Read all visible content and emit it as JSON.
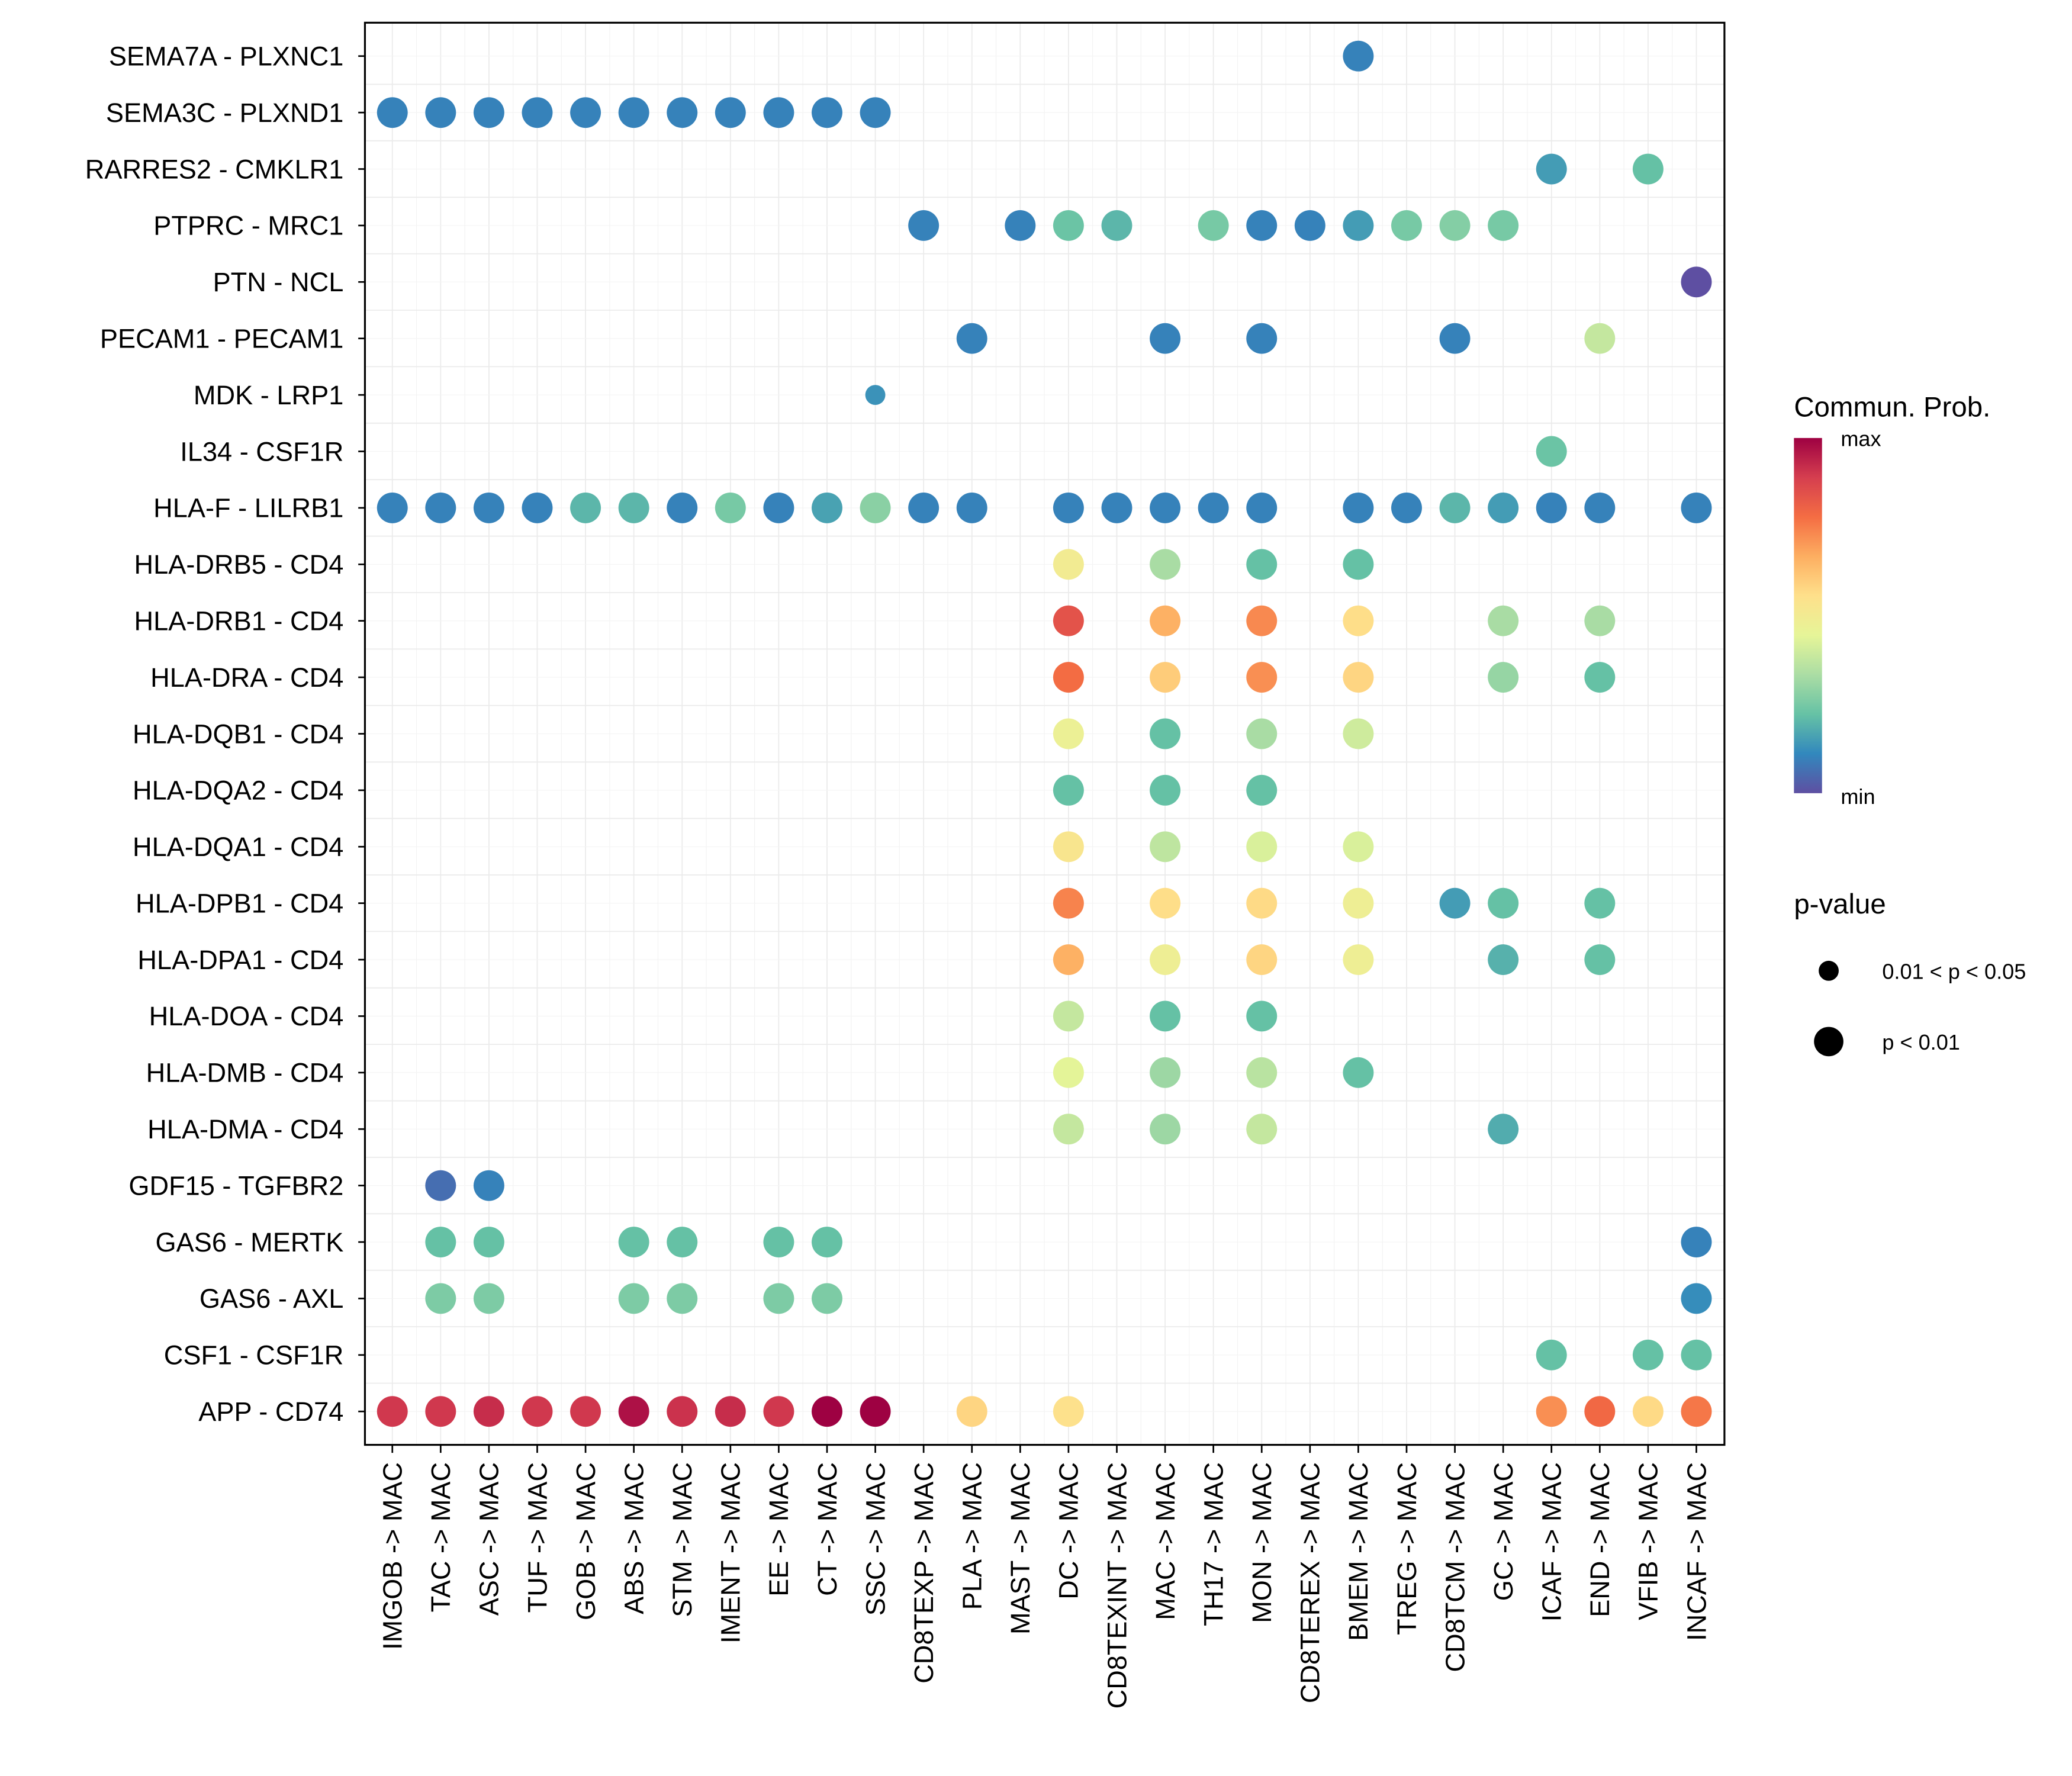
{
  "chart_data": {
    "type": "scatter",
    "subtype": "dot-plot",
    "title": "",
    "xlabel": "",
    "ylabel": "",
    "grid": true,
    "legend_position": "right",
    "x_categories": [
      "IMGOB -> MAC",
      "TAC -> MAC",
      "ASC -> MAC",
      "TUF -> MAC",
      "GOB -> MAC",
      "ABS -> MAC",
      "STM -> MAC",
      "IMENT -> MAC",
      "EE -> MAC",
      "CT -> MAC",
      "SSC -> MAC",
      "CD8TEXP -> MAC",
      "PLA -> MAC",
      "MAST -> MAC",
      "DC -> MAC",
      "CD8TEXINT -> MAC",
      "MAC -> MAC",
      "TH17 -> MAC",
      "MON -> MAC",
      "CD8TEREX -> MAC",
      "BMEM -> MAC",
      "TREG -> MAC",
      "CD8TCM -> MAC",
      "GC -> MAC",
      "ICAF -> MAC",
      "END -> MAC",
      "VFIB -> MAC",
      "INCAF -> MAC"
    ],
    "y_categories": [
      "SEMA7A - PLXNC1",
      "SEMA3C - PLXND1",
      "RARRES2 - CMKLR1",
      "PTPRC - MRC1",
      "PTN - NCL",
      "PECAM1 - PECAM1",
      "MDK - LRP1",
      "IL34 - CSF1R",
      "HLA-F - LILRB1",
      "HLA-DRB5 - CD4",
      "HLA-DRB1 - CD4",
      "HLA-DRA - CD4",
      "HLA-DQB1 - CD4",
      "HLA-DQA2 - CD4",
      "HLA-DQA1 - CD4",
      "HLA-DPB1 - CD4",
      "HLA-DPA1 - CD4",
      "HLA-DOA - CD4",
      "HLA-DMB - CD4",
      "HLA-DMA - CD4",
      "GDF15 - TGFBR2",
      "GAS6 - MERTK",
      "GAS6 - AXL",
      "CSF1 - CSF1R",
      "APP - CD74"
    ],
    "value_scale": "relative communication probability (0 = min, 1 = max)",
    "points": [
      {
        "y": "SEMA7A - PLXNC1",
        "x": "BMEM -> MAC",
        "prob": 0.1,
        "p": "p < 0.01"
      },
      {
        "y": "SEMA3C - PLXND1",
        "x": "IMGOB -> MAC",
        "prob": 0.1,
        "p": "p < 0.01"
      },
      {
        "y": "SEMA3C - PLXND1",
        "x": "TAC -> MAC",
        "prob": 0.1,
        "p": "p < 0.01"
      },
      {
        "y": "SEMA3C - PLXND1",
        "x": "ASC -> MAC",
        "prob": 0.1,
        "p": "p < 0.01"
      },
      {
        "y": "SEMA3C - PLXND1",
        "x": "TUF -> MAC",
        "prob": 0.1,
        "p": "p < 0.01"
      },
      {
        "y": "SEMA3C - PLXND1",
        "x": "GOB -> MAC",
        "prob": 0.1,
        "p": "p < 0.01"
      },
      {
        "y": "SEMA3C - PLXND1",
        "x": "ABS -> MAC",
        "prob": 0.1,
        "p": "p < 0.01"
      },
      {
        "y": "SEMA3C - PLXND1",
        "x": "STM -> MAC",
        "prob": 0.1,
        "p": "p < 0.01"
      },
      {
        "y": "SEMA3C - PLXND1",
        "x": "IMENT -> MAC",
        "prob": 0.1,
        "p": "p < 0.01"
      },
      {
        "y": "SEMA3C - PLXND1",
        "x": "EE -> MAC",
        "prob": 0.1,
        "p": "p < 0.01"
      },
      {
        "y": "SEMA3C - PLXND1",
        "x": "CT -> MAC",
        "prob": 0.1,
        "p": "p < 0.01"
      },
      {
        "y": "SEMA3C - PLXND1",
        "x": "SSC -> MAC",
        "prob": 0.1,
        "p": "p < 0.01"
      },
      {
        "y": "RARRES2 - CMKLR1",
        "x": "ICAF -> MAC",
        "prob": 0.15,
        "p": "p < 0.01"
      },
      {
        "y": "RARRES2 - CMKLR1",
        "x": "VFIB -> MAC",
        "prob": 0.22,
        "p": "p < 0.01"
      },
      {
        "y": "PTPRC - MRC1",
        "x": "CD8TEXP -> MAC",
        "prob": 0.1,
        "p": "p < 0.01"
      },
      {
        "y": "PTPRC - MRC1",
        "x": "MAST -> MAC",
        "prob": 0.1,
        "p": "p < 0.01"
      },
      {
        "y": "PTPRC - MRC1",
        "x": "DC -> MAC",
        "prob": 0.23,
        "p": "p < 0.01"
      },
      {
        "y": "PTPRC - MRC1",
        "x": "CD8TEXINT -> MAC",
        "prob": 0.2,
        "p": "p < 0.01"
      },
      {
        "y": "PTPRC - MRC1",
        "x": "TH17 -> MAC",
        "prob": 0.25,
        "p": "p < 0.01"
      },
      {
        "y": "PTPRC - MRC1",
        "x": "MON -> MAC",
        "prob": 0.1,
        "p": "p < 0.01"
      },
      {
        "y": "PTPRC - MRC1",
        "x": "CD8TEREX -> MAC",
        "prob": 0.1,
        "p": "p < 0.01"
      },
      {
        "y": "PTPRC - MRC1",
        "x": "BMEM -> MAC",
        "prob": 0.15,
        "p": "p < 0.01"
      },
      {
        "y": "PTPRC - MRC1",
        "x": "TREG -> MAC",
        "prob": 0.25,
        "p": "p < 0.01"
      },
      {
        "y": "PTPRC - MRC1",
        "x": "CD8TCM -> MAC",
        "prob": 0.27,
        "p": "p < 0.01"
      },
      {
        "y": "PTPRC - MRC1",
        "x": "GC -> MAC",
        "prob": 0.25,
        "p": "p < 0.01"
      },
      {
        "y": "PTN - NCL",
        "x": "INCAF -> MAC",
        "prob": 0.0,
        "p": "p < 0.01"
      },
      {
        "y": "PECAM1 - PECAM1",
        "x": "PLA -> MAC",
        "prob": 0.1,
        "p": "p < 0.01"
      },
      {
        "y": "PECAM1 - PECAM1",
        "x": "MAC -> MAC",
        "prob": 0.1,
        "p": "p < 0.01"
      },
      {
        "y": "PECAM1 - PECAM1",
        "x": "MON -> MAC",
        "prob": 0.1,
        "p": "p < 0.01"
      },
      {
        "y": "PECAM1 - PECAM1",
        "x": "CD8TCM -> MAC",
        "prob": 0.1,
        "p": "p < 0.01"
      },
      {
        "y": "PECAM1 - PECAM1",
        "x": "END -> MAC",
        "prob": 0.38,
        "p": "p < 0.01"
      },
      {
        "y": "MDK - LRP1",
        "x": "SSC -> MAC",
        "prob": 0.13,
        "p": "0.01 < p < 0.05"
      },
      {
        "y": "IL34 - CSF1R",
        "x": "ICAF -> MAC",
        "prob": 0.23,
        "p": "p < 0.01"
      },
      {
        "y": "HLA-F - LILRB1",
        "x": "IMGOB -> MAC",
        "prob": 0.1,
        "p": "p < 0.01"
      },
      {
        "y": "HLA-F - LILRB1",
        "x": "TAC -> MAC",
        "prob": 0.1,
        "p": "p < 0.01"
      },
      {
        "y": "HLA-F - LILRB1",
        "x": "ASC -> MAC",
        "prob": 0.1,
        "p": "p < 0.01"
      },
      {
        "y": "HLA-F - LILRB1",
        "x": "TUF -> MAC",
        "prob": 0.1,
        "p": "p < 0.01"
      },
      {
        "y": "HLA-F - LILRB1",
        "x": "GOB -> MAC",
        "prob": 0.2,
        "p": "p < 0.01"
      },
      {
        "y": "HLA-F - LILRB1",
        "x": "ABS -> MAC",
        "prob": 0.2,
        "p": "p < 0.01"
      },
      {
        "y": "HLA-F - LILRB1",
        "x": "STM -> MAC",
        "prob": 0.1,
        "p": "p < 0.01"
      },
      {
        "y": "HLA-F - LILRB1",
        "x": "IMENT -> MAC",
        "prob": 0.25,
        "p": "p < 0.01"
      },
      {
        "y": "HLA-F - LILRB1",
        "x": "EE -> MAC",
        "prob": 0.1,
        "p": "p < 0.01"
      },
      {
        "y": "HLA-F - LILRB1",
        "x": "CT -> MAC",
        "prob": 0.16,
        "p": "p < 0.01"
      },
      {
        "y": "HLA-F - LILRB1",
        "x": "SSC -> MAC",
        "prob": 0.28,
        "p": "p < 0.01"
      },
      {
        "y": "HLA-F - LILRB1",
        "x": "CD8TEXP -> MAC",
        "prob": 0.1,
        "p": "p < 0.01"
      },
      {
        "y": "HLA-F - LILRB1",
        "x": "PLA -> MAC",
        "prob": 0.1,
        "p": "p < 0.01"
      },
      {
        "y": "HLA-F - LILRB1",
        "x": "DC -> MAC",
        "prob": 0.1,
        "p": "p < 0.01"
      },
      {
        "y": "HLA-F - LILRB1",
        "x": "CD8TEXINT -> MAC",
        "prob": 0.1,
        "p": "p < 0.01"
      },
      {
        "y": "HLA-F - LILRB1",
        "x": "MAC -> MAC",
        "prob": 0.1,
        "p": "p < 0.01"
      },
      {
        "y": "HLA-F - LILRB1",
        "x": "TH17 -> MAC",
        "prob": 0.1,
        "p": "p < 0.01"
      },
      {
        "y": "HLA-F - LILRB1",
        "x": "MON -> MAC",
        "prob": 0.1,
        "p": "p < 0.01"
      },
      {
        "y": "HLA-F - LILRB1",
        "x": "BMEM -> MAC",
        "prob": 0.1,
        "p": "p < 0.01"
      },
      {
        "y": "HLA-F - LILRB1",
        "x": "TREG -> MAC",
        "prob": 0.1,
        "p": "p < 0.01"
      },
      {
        "y": "HLA-F - LILRB1",
        "x": "CD8TCM -> MAC",
        "prob": 0.2,
        "p": "p < 0.01"
      },
      {
        "y": "HLA-F - LILRB1",
        "x": "GC -> MAC",
        "prob": 0.15,
        "p": "p < 0.01"
      },
      {
        "y": "HLA-F - LILRB1",
        "x": "ICAF -> MAC",
        "prob": 0.1,
        "p": "p < 0.01"
      },
      {
        "y": "HLA-F - LILRB1",
        "x": "END -> MAC",
        "prob": 0.1,
        "p": "p < 0.01"
      },
      {
        "y": "HLA-F - LILRB1",
        "x": "INCAF -> MAC",
        "prob": 0.1,
        "p": "p < 0.01"
      },
      {
        "y": "HLA-DRB5 - CD4",
        "x": "DC -> MAC",
        "prob": 0.5,
        "p": "p < 0.01"
      },
      {
        "y": "HLA-DRB5 - CD4",
        "x": "MAC -> MAC",
        "prob": 0.33,
        "p": "p < 0.01"
      },
      {
        "y": "HLA-DRB5 - CD4",
        "x": "MON -> MAC",
        "prob": 0.22,
        "p": "p < 0.01"
      },
      {
        "y": "HLA-DRB5 - CD4",
        "x": "BMEM -> MAC",
        "prob": 0.22,
        "p": "p < 0.01"
      },
      {
        "y": "HLA-DRB1 - CD4",
        "x": "DC -> MAC",
        "prob": 0.84,
        "p": "p < 0.01"
      },
      {
        "y": "HLA-DRB1 - CD4",
        "x": "MAC -> MAC",
        "prob": 0.66,
        "p": "p < 0.01"
      },
      {
        "y": "HLA-DRB1 - CD4",
        "x": "MON -> MAC",
        "prob": 0.73,
        "p": "p < 0.01"
      },
      {
        "y": "HLA-DRB1 - CD4",
        "x": "BMEM -> MAC",
        "prob": 0.56,
        "p": "p < 0.01"
      },
      {
        "y": "HLA-DRB1 - CD4",
        "x": "GC -> MAC",
        "prob": 0.33,
        "p": "p < 0.01"
      },
      {
        "y": "HLA-DRB1 - CD4",
        "x": "END -> MAC",
        "prob": 0.33,
        "p": "p < 0.01"
      },
      {
        "y": "HLA-DRA - CD4",
        "x": "DC -> MAC",
        "prob": 0.78,
        "p": "p < 0.01"
      },
      {
        "y": "HLA-DRA - CD4",
        "x": "MAC -> MAC",
        "prob": 0.6,
        "p": "p < 0.01"
      },
      {
        "y": "HLA-DRA - CD4",
        "x": "MON -> MAC",
        "prob": 0.72,
        "p": "p < 0.01"
      },
      {
        "y": "HLA-DRA - CD4",
        "x": "BMEM -> MAC",
        "prob": 0.58,
        "p": "p < 0.01"
      },
      {
        "y": "HLA-DRA - CD4",
        "x": "GC -> MAC",
        "prob": 0.3,
        "p": "p < 0.01"
      },
      {
        "y": "HLA-DRA - CD4",
        "x": "END -> MAC",
        "prob": 0.22,
        "p": "p < 0.01"
      },
      {
        "y": "HLA-DQB1 - CD4",
        "x": "DC -> MAC",
        "prob": 0.47,
        "p": "p < 0.01"
      },
      {
        "y": "HLA-DQB1 - CD4",
        "x": "MAC -> MAC",
        "prob": 0.22,
        "p": "p < 0.01"
      },
      {
        "y": "HLA-DQB1 - CD4",
        "x": "MON -> MAC",
        "prob": 0.33,
        "p": "p < 0.01"
      },
      {
        "y": "HLA-DQB1 - CD4",
        "x": "BMEM -> MAC",
        "prob": 0.4,
        "p": "p < 0.01"
      },
      {
        "y": "HLA-DQA2 - CD4",
        "x": "DC -> MAC",
        "prob": 0.22,
        "p": "p < 0.01"
      },
      {
        "y": "HLA-DQA2 - CD4",
        "x": "MAC -> MAC",
        "prob": 0.22,
        "p": "p < 0.01"
      },
      {
        "y": "HLA-DQA2 - CD4",
        "x": "MON -> MAC",
        "prob": 0.22,
        "p": "p < 0.01"
      },
      {
        "y": "HLA-DQA1 - CD4",
        "x": "DC -> MAC",
        "prob": 0.53,
        "p": "p < 0.01"
      },
      {
        "y": "HLA-DQA1 - CD4",
        "x": "MAC -> MAC",
        "prob": 0.37,
        "p": "p < 0.01"
      },
      {
        "y": "HLA-DQA1 - CD4",
        "x": "MON -> MAC",
        "prob": 0.42,
        "p": "p < 0.01"
      },
      {
        "y": "HLA-DQA1 - CD4",
        "x": "BMEM -> MAC",
        "prob": 0.42,
        "p": "p < 0.01"
      },
      {
        "y": "HLA-DPB1 - CD4",
        "x": "DC -> MAC",
        "prob": 0.74,
        "p": "p < 0.01"
      },
      {
        "y": "HLA-DPB1 - CD4",
        "x": "MAC -> MAC",
        "prob": 0.56,
        "p": "p < 0.01"
      },
      {
        "y": "HLA-DPB1 - CD4",
        "x": "MON -> MAC",
        "prob": 0.57,
        "p": "p < 0.01"
      },
      {
        "y": "HLA-DPB1 - CD4",
        "x": "BMEM -> MAC",
        "prob": 0.48,
        "p": "p < 0.01"
      },
      {
        "y": "HLA-DPB1 - CD4",
        "x": "CD8TCM -> MAC",
        "prob": 0.15,
        "p": "p < 0.01"
      },
      {
        "y": "HLA-DPB1 - CD4",
        "x": "GC -> MAC",
        "prob": 0.22,
        "p": "p < 0.01"
      },
      {
        "y": "HLA-DPB1 - CD4",
        "x": "END -> MAC",
        "prob": 0.22,
        "p": "p < 0.01"
      },
      {
        "y": "HLA-DPA1 - CD4",
        "x": "DC -> MAC",
        "prob": 0.66,
        "p": "p < 0.01"
      },
      {
        "y": "HLA-DPA1 - CD4",
        "x": "MAC -> MAC",
        "prob": 0.48,
        "p": "p < 0.01"
      },
      {
        "y": "HLA-DPA1 - CD4",
        "x": "MON -> MAC",
        "prob": 0.58,
        "p": "p < 0.01"
      },
      {
        "y": "HLA-DPA1 - CD4",
        "x": "BMEM -> MAC",
        "prob": 0.48,
        "p": "p < 0.01"
      },
      {
        "y": "HLA-DPA1 - CD4",
        "x": "GC -> MAC",
        "prob": 0.19,
        "p": "p < 0.01"
      },
      {
        "y": "HLA-DPA1 - CD4",
        "x": "END -> MAC",
        "prob": 0.22,
        "p": "p < 0.01"
      },
      {
        "y": "HLA-DOA - CD4",
        "x": "DC -> MAC",
        "prob": 0.38,
        "p": "p < 0.01"
      },
      {
        "y": "HLA-DOA - CD4",
        "x": "MAC -> MAC",
        "prob": 0.22,
        "p": "p < 0.01"
      },
      {
        "y": "HLA-DOA - CD4",
        "x": "MON -> MAC",
        "prob": 0.22,
        "p": "p < 0.01"
      },
      {
        "y": "HLA-DMB - CD4",
        "x": "DC -> MAC",
        "prob": 0.44,
        "p": "p < 0.01"
      },
      {
        "y": "HLA-DMB - CD4",
        "x": "MAC -> MAC",
        "prob": 0.31,
        "p": "p < 0.01"
      },
      {
        "y": "HLA-DMB - CD4",
        "x": "MON -> MAC",
        "prob": 0.36,
        "p": "p < 0.01"
      },
      {
        "y": "HLA-DMB - CD4",
        "x": "BMEM -> MAC",
        "prob": 0.22,
        "p": "p < 0.01"
      },
      {
        "y": "HLA-DMA - CD4",
        "x": "DC -> MAC",
        "prob": 0.38,
        "p": "p < 0.01"
      },
      {
        "y": "HLA-DMA - CD4",
        "x": "MAC -> MAC",
        "prob": 0.31,
        "p": "p < 0.01"
      },
      {
        "y": "HLA-DMA - CD4",
        "x": "MON -> MAC",
        "prob": 0.38,
        "p": "p < 0.01"
      },
      {
        "y": "HLA-DMA - CD4",
        "x": "GC -> MAC",
        "prob": 0.18,
        "p": "p < 0.01"
      },
      {
        "y": "GDF15 - TGFBR2",
        "x": "TAC -> MAC",
        "prob": 0.06,
        "p": "p < 0.01"
      },
      {
        "y": "GDF15 - TGFBR2",
        "x": "ASC -> MAC",
        "prob": 0.1,
        "p": "p < 0.01"
      },
      {
        "y": "GAS6 - MERTK",
        "x": "TAC -> MAC",
        "prob": 0.22,
        "p": "p < 0.01"
      },
      {
        "y": "GAS6 - MERTK",
        "x": "ASC -> MAC",
        "prob": 0.22,
        "p": "p < 0.01"
      },
      {
        "y": "GAS6 - MERTK",
        "x": "ABS -> MAC",
        "prob": 0.22,
        "p": "p < 0.01"
      },
      {
        "y": "GAS6 - MERTK",
        "x": "STM -> MAC",
        "prob": 0.22,
        "p": "p < 0.01"
      },
      {
        "y": "GAS6 - MERTK",
        "x": "EE -> MAC",
        "prob": 0.22,
        "p": "p < 0.01"
      },
      {
        "y": "GAS6 - MERTK",
        "x": "CT -> MAC",
        "prob": 0.22,
        "p": "p < 0.01"
      },
      {
        "y": "GAS6 - MERTK",
        "x": "INCAF -> MAC",
        "prob": 0.1,
        "p": "p < 0.01"
      },
      {
        "y": "GAS6 - AXL",
        "x": "TAC -> MAC",
        "prob": 0.26,
        "p": "p < 0.01"
      },
      {
        "y": "GAS6 - AXL",
        "x": "ASC -> MAC",
        "prob": 0.26,
        "p": "p < 0.01"
      },
      {
        "y": "GAS6 - AXL",
        "x": "ABS -> MAC",
        "prob": 0.26,
        "p": "p < 0.01"
      },
      {
        "y": "GAS6 - AXL",
        "x": "STM -> MAC",
        "prob": 0.26,
        "p": "p < 0.01"
      },
      {
        "y": "GAS6 - AXL",
        "x": "EE -> MAC",
        "prob": 0.26,
        "p": "p < 0.01"
      },
      {
        "y": "GAS6 - AXL",
        "x": "CT -> MAC",
        "prob": 0.26,
        "p": "p < 0.01"
      },
      {
        "y": "GAS6 - AXL",
        "x": "INCAF -> MAC",
        "prob": 0.12,
        "p": "p < 0.01"
      },
      {
        "y": "CSF1 - CSF1R",
        "x": "ICAF -> MAC",
        "prob": 0.22,
        "p": "p < 0.01"
      },
      {
        "y": "CSF1 - CSF1R",
        "x": "VFIB -> MAC",
        "prob": 0.22,
        "p": "p < 0.01"
      },
      {
        "y": "CSF1 - CSF1R",
        "x": "INCAF -> MAC",
        "prob": 0.22,
        "p": "p < 0.01"
      },
      {
        "y": "APP - CD74",
        "x": "IMGOB -> MAC",
        "prob": 0.9,
        "p": "p < 0.01"
      },
      {
        "y": "APP - CD74",
        "x": "TAC -> MAC",
        "prob": 0.9,
        "p": "p < 0.01"
      },
      {
        "y": "APP - CD74",
        "x": "ASC -> MAC",
        "prob": 0.92,
        "p": "p < 0.01"
      },
      {
        "y": "APP - CD74",
        "x": "TUF -> MAC",
        "prob": 0.9,
        "p": "p < 0.01"
      },
      {
        "y": "APP - CD74",
        "x": "GOB -> MAC",
        "prob": 0.9,
        "p": "p < 0.01"
      },
      {
        "y": "APP - CD74",
        "x": "ABS -> MAC",
        "prob": 0.97,
        "p": "p < 0.01"
      },
      {
        "y": "APP - CD74",
        "x": "STM -> MAC",
        "prob": 0.91,
        "p": "p < 0.01"
      },
      {
        "y": "APP - CD74",
        "x": "IMENT -> MAC",
        "prob": 0.92,
        "p": "p < 0.01"
      },
      {
        "y": "APP - CD74",
        "x": "EE -> MAC",
        "prob": 0.9,
        "p": "p < 0.01"
      },
      {
        "y": "APP - CD74",
        "x": "CT -> MAC",
        "prob": 1.0,
        "p": "p < 0.01"
      },
      {
        "y": "APP - CD74",
        "x": "SSC -> MAC",
        "prob": 1.0,
        "p": "p < 0.01"
      },
      {
        "y": "APP - CD74",
        "x": "PLA -> MAC",
        "prob": 0.58,
        "p": "p < 0.01"
      },
      {
        "y": "APP - CD74",
        "x": "DC -> MAC",
        "prob": 0.55,
        "p": "p < 0.01"
      },
      {
        "y": "APP - CD74",
        "x": "ICAF -> MAC",
        "prob": 0.72,
        "p": "p < 0.01"
      },
      {
        "y": "APP - CD74",
        "x": "END -> MAC",
        "prob": 0.79,
        "p": "p < 0.01"
      },
      {
        "y": "APP - CD74",
        "x": "VFIB -> MAC",
        "prob": 0.57,
        "p": "p < 0.01"
      },
      {
        "y": "APP - CD74",
        "x": "INCAF -> MAC",
        "prob": 0.76,
        "p": "p < 0.01"
      }
    ],
    "legend": {
      "color": {
        "title": "Commun. Prob.",
        "max_label": "max",
        "min_label": "min",
        "palette": [
          "#5E4FA2",
          "#3288BD",
          "#66C2A5",
          "#ABDDA4",
          "#E6F598",
          "#FEE08B",
          "#FDAE61",
          "#F46D43",
          "#D53E4F",
          "#9E0142"
        ]
      },
      "size": {
        "title": "p-value",
        "items": [
          {
            "label": "0.01 < p < 0.05",
            "class": "0.01 < p < 0.05"
          },
          {
            "label": "p < 0.01",
            "class": "p < 0.01"
          }
        ]
      }
    }
  }
}
